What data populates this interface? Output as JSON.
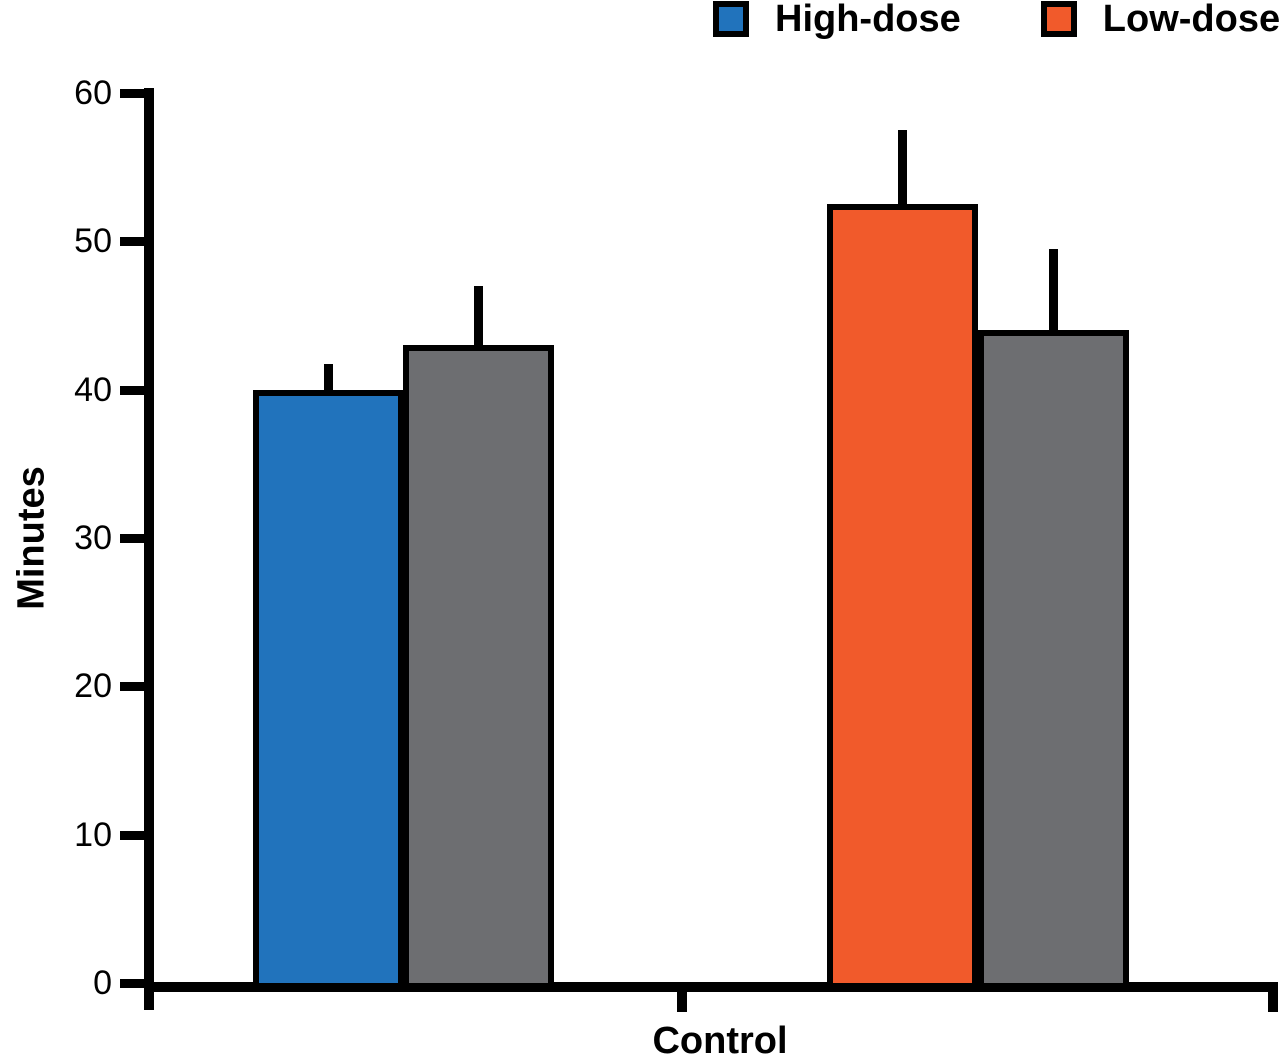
{
  "figure": {
    "background": "#FFFFFF",
    "axis_color": "#000000"
  },
  "chart_data": {
    "type": "bar",
    "title": "",
    "ylabel": "Minutes",
    "xlabel": "Control",
    "ylim": [
      0,
      60
    ],
    "yticks": [
      0,
      10,
      20,
      30,
      40,
      50,
      60
    ],
    "grid": false,
    "error_bars": "upper only, capless vertical lines",
    "legend_position": "top-right",
    "legend": {
      "items": [
        {
          "label": "High-dose",
          "color": "#2173BC"
        },
        {
          "label": "Low-dose",
          "color": "#F15A2B"
        }
      ]
    },
    "groups": [
      {
        "bars": [
          {
            "series": "High-dose",
            "value": 40,
            "error_top": 41.7,
            "color": "#2173BC"
          },
          {
            "series": "",
            "value": 43,
            "error_top": 47,
            "color": "#6D6E71"
          }
        ]
      },
      {
        "bars": [
          {
            "series": "Low-dose",
            "value": 52.5,
            "error_top": 57.5,
            "color": "#F15A2B"
          },
          {
            "series": "",
            "value": 44,
            "error_top": 49.5,
            "color": "#6D6E71"
          }
        ]
      }
    ]
  }
}
